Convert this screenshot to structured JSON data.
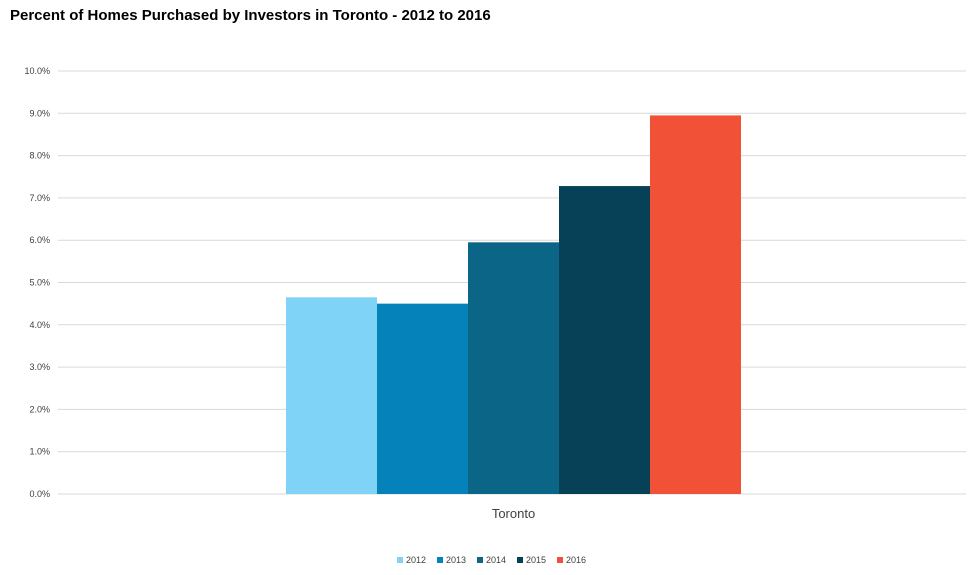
{
  "chart_data": {
    "type": "bar",
    "title": "Percent of Homes Purchased by Investors in Toronto - 2012 to 2016",
    "xlabel": "",
    "ylabel": "",
    "categories": [
      "Toronto"
    ],
    "series": [
      {
        "name": "2012",
        "values": [
          4.65
        ],
        "color": "#7fd3f7"
      },
      {
        "name": "2013",
        "values": [
          4.5
        ],
        "color": "#0582b9"
      },
      {
        "name": "2014",
        "values": [
          5.95
        ],
        "color": "#0b6587"
      },
      {
        "name": "2015",
        "values": [
          7.28
        ],
        "color": "#064157"
      },
      {
        "name": "2016",
        "values": [
          8.95
        ],
        "color": "#f15136"
      }
    ],
    "ylim": [
      0,
      10
    ],
    "yticks": [
      "0.0%",
      "1.0%",
      "2.0%",
      "3.0%",
      "4.0%",
      "5.0%",
      "6.0%",
      "7.0%",
      "8.0%",
      "9.0%",
      "10.0%"
    ],
    "grid": true,
    "legend_position": "bottom",
    "gridline_color": "#d9d9d9",
    "axis_text_color": "#404040"
  }
}
